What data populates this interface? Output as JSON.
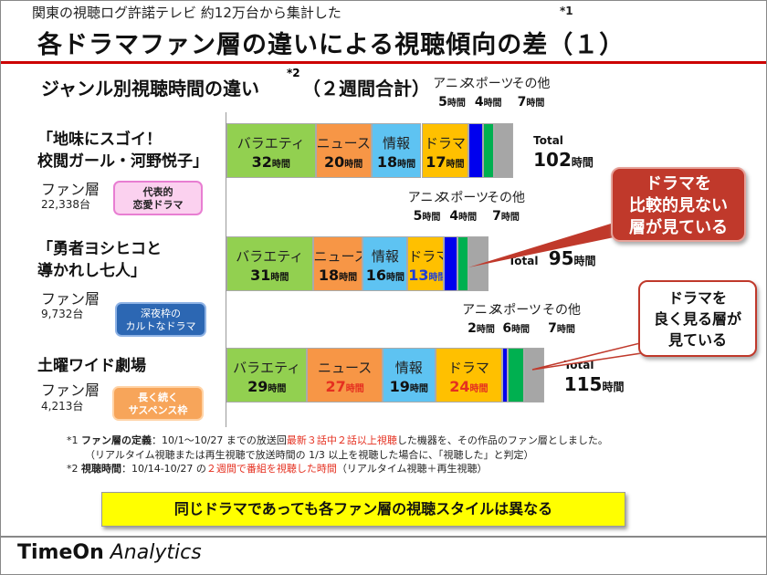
{
  "header": {
    "subtitle": "関東の視聴ログ許諾テレビ 約12万台から集計した",
    "note_mark": "*1",
    "title": "各ドラマファン層の違いによる視聴傾向の差（１）",
    "section": "ジャンル別視聴時間の違い",
    "section_mark": "*2",
    "section_suffix": "（２週間合計）"
  },
  "chart_data": {
    "type": "bar",
    "orientation": "horizontal",
    "stacked": true,
    "unit": "時間",
    "categories": [
      "バラエティ",
      "ニュース",
      "情報",
      "ドラマ",
      "アニメ",
      "スポーツ",
      "その他"
    ],
    "colors": [
      "#92d050",
      "#f79646",
      "#5ec3f2",
      "#ffc000",
      "#0000ee",
      "#00b050",
      "#a6a6a6"
    ],
    "groups": [
      {
        "title_line1": "「地味にスゴイ！",
        "title_line2": "校閲ガール・河野悦子」",
        "fan_label": "ファン層",
        "count": "22,338台",
        "badge_line1": "代表的",
        "badge_line2": "恋愛ドラマ",
        "values": [
          32,
          20,
          18,
          17,
          5,
          4,
          7
        ],
        "value_colors": [
          "#111",
          "#111",
          "#111",
          "#111",
          "#111",
          "#111",
          "#111"
        ],
        "total_label": "Total",
        "total": 102
      },
      {
        "title_line1": "「勇者ヨシヒコと",
        "title_line2": "導かれし七人」",
        "fan_label": "ファン層",
        "count": "9,732台",
        "badge_line1": "深夜枠の",
        "badge_line2": "カルトなドラマ",
        "values": [
          31,
          18,
          16,
          13,
          5,
          4,
          7
        ],
        "value_colors": [
          "#111",
          "#111",
          "#111",
          "#1f3fd8",
          "#111",
          "#111",
          "#111"
        ],
        "total_label": "Total",
        "total": 95
      },
      {
        "title_line1": "土曜ワイド劇場",
        "title_line2": "",
        "fan_label": "ファン層",
        "count": "4,213台",
        "badge_line1": "長く続く",
        "badge_line2": "サスペンス枠",
        "values": [
          29,
          27,
          19,
          24,
          2,
          6,
          7
        ],
        "value_colors": [
          "#111",
          "#e53020",
          "#111",
          "#e53020",
          "#111",
          "#111",
          "#111"
        ],
        "total_label": "Total",
        "total": 115
      }
    ],
    "callouts": [
      {
        "line1": "ドラマを",
        "line2": "比較的見ない",
        "line3": "層が見ている"
      },
      {
        "line1": "ドラマを",
        "line2": "良く見る層が",
        "line3": "見ている"
      }
    ]
  },
  "footnotes": {
    "n1_mark": "*1",
    "n1_head": "ファン層の定義",
    "n1_a": "：10/1～10/27 までの放送回",
    "n1_red": "最新３話中２話以上視聴",
    "n1_b": "した機器を、その作品のファン層としました。",
    "n1_c": "（リアルタイム視聴または再生視聴で放送時間の 1/3 以上を視聴した場合に、「視聴した」と判定）",
    "n2_mark": "*2",
    "n2_head": "視聴時間",
    "n2_a": "：10/14-10/27 の",
    "n2_red": "２週間で番組を視聴した時間",
    "n2_b": "（リアルタイム視聴＋再生視聴）"
  },
  "conclusion": "同じドラマであっても各ファン層の視聴スタイルは異なる",
  "brand": {
    "bold": "TimeOn",
    "italic": " Analytics"
  }
}
